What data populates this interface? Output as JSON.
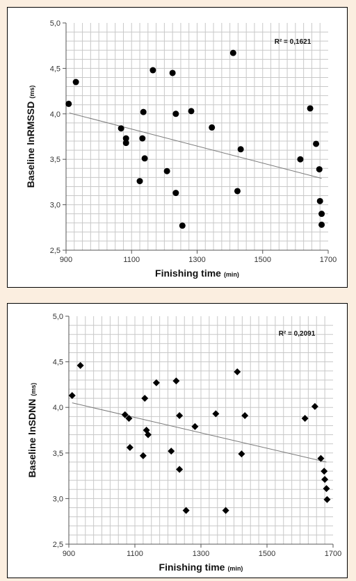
{
  "chart_data": [
    {
      "type": "scatter",
      "marker": "circle",
      "xlabel_main": "Finishing time",
      "xlabel_unit": "(min)",
      "ylabel_main": "Baseline lnRMSSD",
      "ylabel_unit": "(ms)",
      "annotation": "R² = 0,1621",
      "xlim": [
        900,
        1700
      ],
      "ylim": [
        2.5,
        5.0
      ],
      "x_ticks": [
        900,
        1100,
        1300,
        1500,
        1700
      ],
      "x_tick_labels": [
        "900",
        "1100",
        "1300",
        "1500",
        "1700"
      ],
      "y_ticks": [
        2.5,
        3.0,
        3.5,
        4.0,
        4.5,
        5.0
      ],
      "y_tick_labels": [
        "2,5",
        "3,0",
        "3,5",
        "4,0",
        "4,5",
        "5,0"
      ],
      "grid": true,
      "trendline": {
        "x": [
          910,
          1680
        ],
        "y": [
          4.01,
          3.29
        ]
      },
      "points": [
        {
          "x": 908,
          "y": 4.11
        },
        {
          "x": 930,
          "y": 4.35
        },
        {
          "x": 1068,
          "y": 3.84
        },
        {
          "x": 1083,
          "y": 3.73
        },
        {
          "x": 1083,
          "y": 3.68
        },
        {
          "x": 1125,
          "y": 3.26
        },
        {
          "x": 1133,
          "y": 3.73
        },
        {
          "x": 1136,
          "y": 4.02
        },
        {
          "x": 1140,
          "y": 3.51
        },
        {
          "x": 1165,
          "y": 4.48
        },
        {
          "x": 1208,
          "y": 3.37
        },
        {
          "x": 1225,
          "y": 4.45
        },
        {
          "x": 1235,
          "y": 4.0
        },
        {
          "x": 1235,
          "y": 3.13
        },
        {
          "x": 1255,
          "y": 2.77
        },
        {
          "x": 1282,
          "y": 4.03
        },
        {
          "x": 1345,
          "y": 3.85
        },
        {
          "x": 1410,
          "y": 4.67
        },
        {
          "x": 1423,
          "y": 3.15
        },
        {
          "x": 1433,
          "y": 3.61
        },
        {
          "x": 1615,
          "y": 3.5
        },
        {
          "x": 1645,
          "y": 4.06
        },
        {
          "x": 1663,
          "y": 3.67
        },
        {
          "x": 1673,
          "y": 3.39
        },
        {
          "x": 1675,
          "y": 3.04
        },
        {
          "x": 1680,
          "y": 2.9
        },
        {
          "x": 1680,
          "y": 2.78
        }
      ]
    },
    {
      "type": "scatter",
      "marker": "diamond",
      "xlabel_main": "Finishing time",
      "xlabel_unit": "(min)",
      "ylabel_main": "Baseline lnSDNN",
      "ylabel_unit": "(ms)",
      "annotation": "R² = 0,2091",
      "xlim": [
        900,
        1700
      ],
      "ylim": [
        2.5,
        5.0
      ],
      "x_ticks": [
        900,
        1100,
        1300,
        1500,
        1700
      ],
      "x_tick_labels": [
        "900",
        "1100",
        "1300",
        "1500",
        "1700"
      ],
      "y_ticks": [
        2.5,
        3.0,
        3.5,
        4.0,
        4.5,
        5.0
      ],
      "y_tick_labels": [
        "2,5",
        "3,0",
        "3,5",
        "4,0",
        "4,5",
        "5,0"
      ],
      "grid": true,
      "trendline": {
        "x": [
          910,
          1680
        ],
        "y": [
          4.05,
          3.4
        ]
      },
      "points": [
        {
          "x": 910,
          "y": 4.13
        },
        {
          "x": 935,
          "y": 4.46
        },
        {
          "x": 1070,
          "y": 3.92
        },
        {
          "x": 1082,
          "y": 3.88
        },
        {
          "x": 1085,
          "y": 3.56
        },
        {
          "x": 1125,
          "y": 3.47
        },
        {
          "x": 1130,
          "y": 4.1
        },
        {
          "x": 1135,
          "y": 3.75
        },
        {
          "x": 1140,
          "y": 3.7
        },
        {
          "x": 1165,
          "y": 4.27
        },
        {
          "x": 1210,
          "y": 3.52
        },
        {
          "x": 1225,
          "y": 4.29
        },
        {
          "x": 1235,
          "y": 3.91
        },
        {
          "x": 1235,
          "y": 3.32
        },
        {
          "x": 1255,
          "y": 2.87
        },
        {
          "x": 1282,
          "y": 3.79
        },
        {
          "x": 1345,
          "y": 3.93
        },
        {
          "x": 1375,
          "y": 2.87
        },
        {
          "x": 1410,
          "y": 4.39
        },
        {
          "x": 1423,
          "y": 3.49
        },
        {
          "x": 1433,
          "y": 3.91
        },
        {
          "x": 1615,
          "y": 3.88
        },
        {
          "x": 1645,
          "y": 4.01
        },
        {
          "x": 1663,
          "y": 3.44
        },
        {
          "x": 1673,
          "y": 3.3
        },
        {
          "x": 1675,
          "y": 3.21
        },
        {
          "x": 1680,
          "y": 3.11
        },
        {
          "x": 1682,
          "y": 2.99
        }
      ]
    }
  ]
}
